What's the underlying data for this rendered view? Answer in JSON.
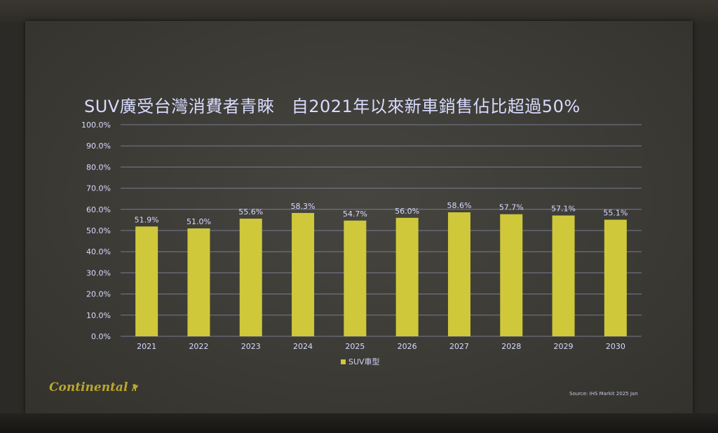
{
  "slide": {
    "title": "SUV廣受台灣消費者青睞　自2021年以來新車銷售佔比超過50%",
    "logo_text": "Continental",
    "logo_icon": "horse-icon",
    "source": "Source: IHS Markit 2025 Jan"
  },
  "colors": {
    "bar": "#cfc83a",
    "text": "#d9dbff",
    "grid": "#8c8fb0"
  },
  "chart_data": {
    "type": "bar",
    "title": "SUV廣受台灣消費者青睞　自2021年以來新車銷售佔比超過50%",
    "categories": [
      "2021",
      "2022",
      "2023",
      "2024",
      "2025",
      "2026",
      "2027",
      "2028",
      "2029",
      "2030"
    ],
    "series": [
      {
        "name": "SUV車型",
        "values": [
          51.9,
          51.0,
          55.6,
          58.3,
          54.7,
          56.0,
          58.6,
          57.7,
          57.1,
          55.1
        ]
      }
    ],
    "data_labels": [
      "51.9%",
      "51.0%",
      "55.6%",
      "58.3%",
      "54.7%",
      "56.0%",
      "58.6%",
      "57.7%",
      "57.1%",
      "55.1%"
    ],
    "y_ticks": [
      "0.0%",
      "10.0%",
      "20.0%",
      "30.0%",
      "40.0%",
      "50.0%",
      "60.0%",
      "70.0%",
      "80.0%",
      "90.0%",
      "100.0%"
    ],
    "ylim": [
      0,
      100
    ],
    "grid": true,
    "legend": "bottom-center"
  }
}
